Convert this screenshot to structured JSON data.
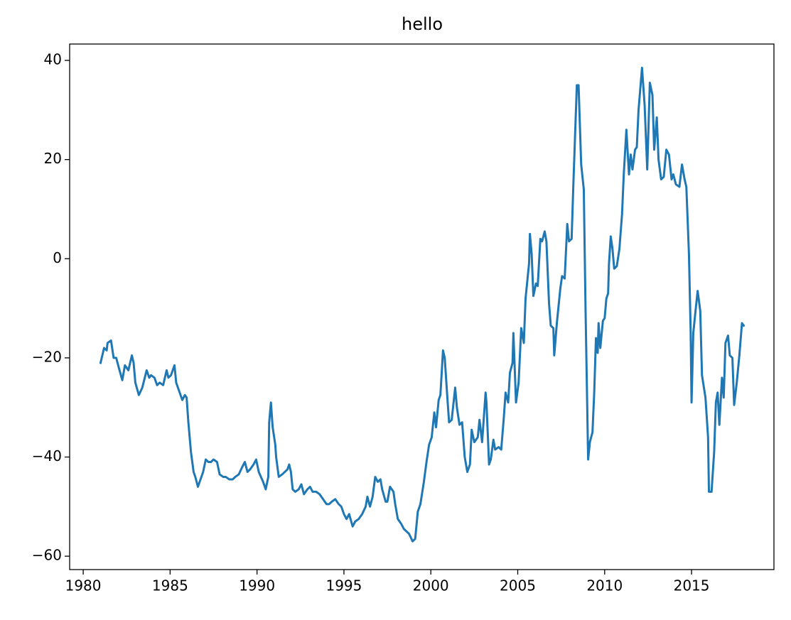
{
  "chart_data": {
    "type": "line",
    "title": "hello",
    "x": [
      1981.0,
      1981.2,
      1981.35,
      1981.4,
      1981.6,
      1981.75,
      1981.9,
      1982.05,
      1982.25,
      1982.4,
      1982.6,
      1982.8,
      1982.9,
      1983.0,
      1983.2,
      1983.4,
      1983.65,
      1983.8,
      1983.9,
      1984.1,
      1984.25,
      1984.4,
      1984.6,
      1984.8,
      1984.9,
      1985.05,
      1985.25,
      1985.35,
      1985.5,
      1985.7,
      1985.85,
      1985.95,
      1986.05,
      1986.2,
      1986.35,
      1986.45,
      1986.6,
      1986.75,
      1986.9,
      1987.05,
      1987.2,
      1987.35,
      1987.5,
      1987.7,
      1987.85,
      1988.05,
      1988.2,
      1988.4,
      1988.6,
      1988.75,
      1988.95,
      1989.15,
      1989.3,
      1989.45,
      1989.6,
      1989.8,
      1989.95,
      1990.1,
      1990.35,
      1990.5,
      1990.65,
      1990.7,
      1990.8,
      1990.9,
      1991.05,
      1991.1,
      1991.25,
      1991.45,
      1991.6,
      1991.75,
      1991.85,
      1991.95,
      1992.05,
      1992.2,
      1992.4,
      1992.55,
      1992.7,
      1992.9,
      1993.05,
      1993.2,
      1993.4,
      1993.6,
      1993.8,
      1994.0,
      1994.15,
      1994.3,
      1994.5,
      1994.7,
      1994.85,
      1995.0,
      1995.15,
      1995.3,
      1995.5,
      1995.65,
      1995.85,
      1996.05,
      1996.25,
      1996.35,
      1996.5,
      1996.65,
      1996.8,
      1996.95,
      1997.1,
      1997.2,
      1997.4,
      1997.5,
      1997.65,
      1997.85,
      1997.95,
      1998.1,
      1998.3,
      1998.45,
      1998.6,
      1998.75,
      1998.95,
      1999.1,
      1999.25,
      1999.4,
      1999.6,
      1999.75,
      1999.9,
      2000.05,
      2000.2,
      2000.3,
      2000.45,
      2000.55,
      2000.7,
      2000.8,
      2000.95,
      2001.05,
      2001.2,
      2001.4,
      2001.5,
      2001.65,
      2001.8,
      2001.95,
      2002.1,
      2002.25,
      2002.35,
      2002.5,
      2002.7,
      2002.8,
      2002.95,
      2003.15,
      2003.2,
      2003.35,
      2003.45,
      2003.6,
      2003.7,
      2003.9,
      2004.05,
      2004.2,
      2004.3,
      2004.45,
      2004.55,
      2004.7,
      2004.75,
      2004.9,
      2005.05,
      2005.2,
      2005.35,
      2005.45,
      2005.65,
      2005.7,
      2005.8,
      2005.9,
      2006.05,
      2006.15,
      2006.3,
      2006.4,
      2006.55,
      2006.65,
      2006.8,
      2006.9,
      2007.05,
      2007.1,
      2007.25,
      2007.45,
      2007.55,
      2007.7,
      2007.85,
      2007.95,
      2008.1,
      2008.2,
      2008.35,
      2008.4,
      2008.5,
      2008.65,
      2008.8,
      2008.9,
      2009.05,
      2009.15,
      2009.3,
      2009.4,
      2009.5,
      2009.6,
      2009.65,
      2009.75,
      2009.9,
      2010.0,
      2010.1,
      2010.2,
      2010.25,
      2010.35,
      2010.45,
      2010.55,
      2010.7,
      2010.85,
      2011.0,
      2011.1,
      2011.25,
      2011.4,
      2011.5,
      2011.6,
      2011.75,
      2011.85,
      2011.95,
      2012.15,
      2012.3,
      2012.45,
      2012.6,
      2012.75,
      2012.85,
      2013.0,
      2013.1,
      2013.25,
      2013.4,
      2013.55,
      2013.7,
      2013.85,
      2013.95,
      2014.1,
      2014.3,
      2014.45,
      2014.6,
      2014.7,
      2014.85,
      2014.95,
      2015.0,
      2015.1,
      2015.2,
      2015.35,
      2015.5,
      2015.6,
      2015.8,
      2015.95,
      2016.0,
      2016.15,
      2016.3,
      2016.4,
      2016.5,
      2016.6,
      2016.75,
      2016.85,
      2016.95,
      2017.1,
      2017.2,
      2017.35,
      2017.45,
      2017.6,
      2017.75,
      2017.9,
      2018.0
    ],
    "series": [
      {
        "color": "#1f77b4",
        "values": [
          -21,
          -18,
          -18.5,
          -17,
          -16.5,
          -20,
          -20,
          -22,
          -24.5,
          -21.5,
          -22.5,
          -19.5,
          -21,
          -25,
          -27.5,
          -26,
          -22.5,
          -24,
          -23.5,
          -24,
          -25.5,
          -25,
          -25.5,
          -22.5,
          -24,
          -23.5,
          -21.5,
          -25,
          -26.5,
          -28.5,
          -27.5,
          -28,
          -33,
          -39,
          -43,
          -44,
          -46,
          -44.5,
          -43,
          -40.5,
          -41,
          -41,
          -40.5,
          -41,
          -43.5,
          -44,
          -44,
          -44.5,
          -44.5,
          -44,
          -43.5,
          -42,
          -41,
          -43,
          -42.5,
          -41.5,
          -40.5,
          -43,
          -45,
          -46.5,
          -44,
          -33,
          -29,
          -34,
          -37.5,
          -40,
          -44,
          -43.5,
          -43,
          -42.5,
          -41.5,
          -43,
          -46.5,
          -47,
          -46.5,
          -45.5,
          -47.5,
          -46.5,
          -46,
          -47,
          -47,
          -47.5,
          -48.5,
          -49.5,
          -49.5,
          -49,
          -48.5,
          -49.5,
          -50,
          -51.5,
          -52.5,
          -51.5,
          -54,
          -53,
          -52.5,
          -51.5,
          -50,
          -48,
          -50,
          -48,
          -44,
          -45,
          -44.5,
          -46.5,
          -49,
          -49,
          -46,
          -47,
          -49.5,
          -52.5,
          -53.5,
          -54.5,
          -55,
          -55.5,
          -57,
          -56.5,
          -51,
          -49.5,
          -45,
          -41,
          -37.5,
          -36,
          -31,
          -34,
          -28.5,
          -27.5,
          -18.5,
          -20,
          -28,
          -33,
          -32.5,
          -26,
          -30,
          -33.5,
          -33,
          -40,
          -43,
          -41.5,
          -34.5,
          -37,
          -36,
          -32.5,
          -37,
          -27,
          -29,
          -41.5,
          -40.5,
          -36.5,
          -38.5,
          -38,
          -38.5,
          -32,
          -27,
          -29,
          -23,
          -21,
          -15,
          -29,
          -25,
          -14,
          -17,
          -8,
          -1,
          5,
          1,
          -7.5,
          -5,
          -5.5,
          4,
          3.5,
          5.5,
          3.5,
          -9,
          -13.5,
          -14,
          -19.5,
          -13,
          -6,
          -3.5,
          -4,
          7,
          3.5,
          4,
          15,
          30,
          35,
          35,
          19,
          14,
          -10,
          -40.5,
          -37,
          -35,
          -27,
          -16,
          -19,
          -13,
          -18,
          -12.5,
          -12,
          -8,
          -7,
          -1,
          4.5,
          2,
          -2,
          -1.5,
          2,
          9,
          17,
          26,
          17,
          21,
          18,
          22,
          22.5,
          30,
          38.5,
          31,
          18,
          35.5,
          33,
          22,
          28.5,
          20,
          16,
          16.5,
          22,
          21,
          16,
          17,
          15,
          14.5,
          19,
          16,
          14.5,
          1,
          -15,
          -29,
          -15,
          -11.5,
          -6.5,
          -10.5,
          -23.5,
          -28,
          -36,
          -47,
          -47,
          -39,
          -29,
          -27,
          -33.5,
          -24,
          -28,
          -17,
          -15.5,
          -19.5,
          -20,
          -29.5,
          -25,
          -19.5,
          -13,
          -13.5
        ]
      }
    ],
    "xlim": [
      1979.22,
      2019.74
    ],
    "ylim": [
      -62.7,
      43.3
    ],
    "xticks": [
      1980,
      1985,
      1990,
      1995,
      2000,
      2005,
      2010,
      2015
    ],
    "yticks": [
      {
        "value": -60,
        "label": "−60"
      },
      {
        "value": -40,
        "label": "−40"
      },
      {
        "value": -20,
        "label": "−20"
      },
      0,
      20,
      40
    ]
  }
}
